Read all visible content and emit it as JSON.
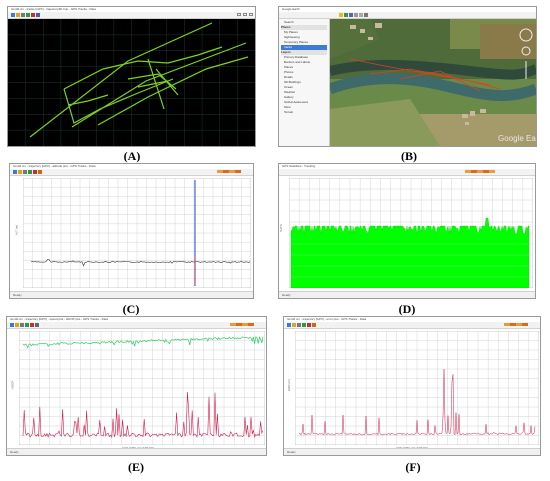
{
  "panels": [
    {
      "caption": "(A)",
      "app": {
        "title": "tsm3d.vm - tracks [GPX] - trajectory3D.tmp - GPS Tracks - Data",
        "status": ""
      }
    },
    {
      "caption": "(B)",
      "app": {
        "title": "Google Earth",
        "sidebar_items": [
          "Search",
          "Places",
          "My Places",
          "Sightseeing",
          "Temporary Places",
          "tracks",
          "Layers",
          "Primary Database",
          "Borders and Labels",
          "Places",
          "Photos",
          "Roads",
          "3D Buildings",
          "Ocean",
          "Weather",
          "Gallery",
          "Global Awareness",
          "More",
          "Terrain"
        ],
        "watermark": "Google Earth"
      }
    },
    {
      "caption": "(C)",
      "app": {
        "title": "tsm3d.vm - trajectory [GPX] - altitude plot - GPS Tracks - Data",
        "xlabel": "GPS TIME (HH:MM:SS)",
        "ylabel": "ALT (m)",
        "status": "Ready"
      }
    },
    {
      "caption": "(D)",
      "app": {
        "title": "GPS Satellites - Tracking",
        "xlabel": "GPS TIME (HH:MM:SS)",
        "ylabel": "SATS",
        "status": "Ready"
      }
    },
    {
      "caption": "(E)",
      "app": {
        "title": "tsm3d.vm - trajectory [GPX] - speed plot - HDOP plot - GPS Tracks - Data",
        "xlabel": "GPS TIME (HH:MM:SS)",
        "ylabel": "HDOP",
        "status": "Ready"
      }
    },
    {
      "caption": "(F)",
      "app": {
        "title": "tsm3d.vm - trajectory [GPX] - error plot - GPS Tracks - Data",
        "xlabel": "GPS TIME (HH:MM:SS)",
        "ylabel": "ERR (m)",
        "status": "Ready"
      }
    }
  ],
  "colors": {
    "track_green": "#7ed321",
    "grid_dark": "#1e3a2a",
    "bar_green": "#00ff00",
    "line_red": "#d0204a",
    "line_green": "#33cc66",
    "spike_blue": "#3a6fd8"
  },
  "icons": [
    "save-icon",
    "open-icon",
    "print-icon",
    "zoom-in-icon",
    "zoom-out-icon",
    "pan-icon",
    "chart-icon",
    "settings-icon"
  ]
}
